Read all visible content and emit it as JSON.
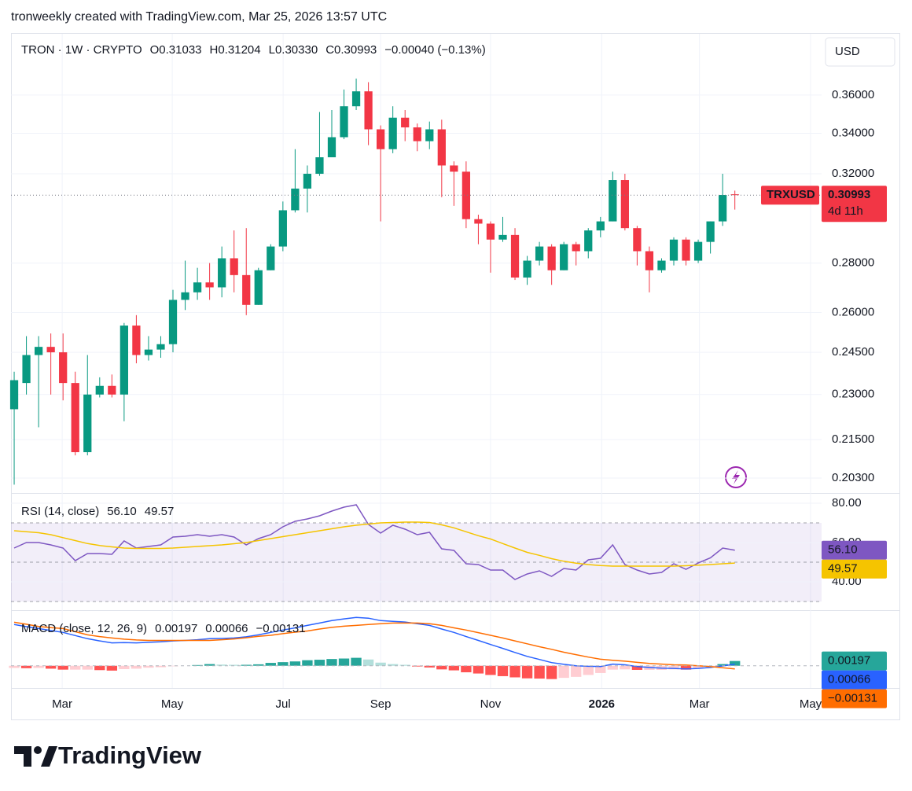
{
  "header": "tronweekly created with TradingView.com, Mar 25, 2026 13:57 UTC",
  "brand": "TradingView",
  "chart_data": [
    {
      "type": "candlestick",
      "title": "TRON · 1W · CRYPTO",
      "legend": [
        {
          "label": "O",
          "value": "0.31033"
        },
        {
          "label": "H",
          "value": "0.31204"
        },
        {
          "label": "L",
          "value": "0.30330"
        },
        {
          "label": "C",
          "value": "0.30993"
        }
      ],
      "change": "−0.00040 (−0.13%)",
      "symbol": "TRXUSD",
      "last_price_label": "0.30993",
      "countdown": "4d 11h",
      "currency": "USD",
      "colors": {
        "up": "#089981",
        "down": "#f23645"
      },
      "log_scale": true,
      "grid": true,
      "xlim": [
        -0.26,
        66.1
      ],
      "xticks": [
        {
          "value": 3.93,
          "label": "Mar"
        },
        {
          "value": 12.94,
          "label": "May"
        },
        {
          "value": 22.02,
          "label": "Jul"
        },
        {
          "value": 30,
          "label": "Sep"
        },
        {
          "value": 39,
          "label": "Nov"
        },
        {
          "value": 48.1,
          "label": "2026",
          "bold": true
        },
        {
          "value": 56.1,
          "label": "Mar"
        },
        {
          "value": 65.2,
          "label": "May"
        }
      ],
      "ylim": [
        0.1985,
        0.395
      ],
      "yticks": [
        {
          "value": 0.203,
          "label": "0.20300"
        },
        {
          "value": 0.215,
          "label": "0.21500"
        },
        {
          "value": 0.23,
          "label": "0.23000"
        },
        {
          "value": 0.245,
          "label": "0.24500"
        },
        {
          "value": 0.26,
          "label": "0.26000"
        },
        {
          "value": 0.28,
          "label": "0.28000"
        },
        {
          "value": 0.32,
          "label": "0.32000"
        },
        {
          "value": 0.34,
          "label": "0.34000"
        },
        {
          "value": 0.36,
          "label": "0.36000"
        }
      ],
      "open": [
        0.225,
        0.234,
        0.244,
        0.247,
        0.245,
        0.234,
        0.211,
        0.23,
        0.233,
        0.23,
        0.255,
        0.244,
        0.246,
        0.248,
        0.265,
        0.268,
        0.272,
        0.27,
        0.282,
        0.275,
        0.263,
        0.277,
        0.287,
        0.303,
        0.313,
        0.32,
        0.328,
        0.338,
        0.354,
        0.362,
        0.342,
        0.332,
        0.348,
        0.343,
        0.336,
        0.342,
        0.324,
        0.321,
        0.299,
        0.297,
        0.29,
        0.292,
        0.274,
        0.281,
        0.287,
        0.277,
        0.288,
        0.285,
        0.294,
        0.298,
        0.317,
        0.295,
        0.285,
        0.277,
        0.281,
        0.29,
        0.281,
        0.289,
        0.298,
        0.31033
      ],
      "high": [
        0.238,
        0.251,
        0.251,
        0.252,
        0.252,
        0.238,
        0.244,
        0.236,
        0.237,
        0.256,
        0.259,
        0.251,
        0.251,
        0.269,
        0.281,
        0.278,
        0.28,
        0.287,
        0.294,
        0.295,
        0.278,
        0.288,
        0.307,
        0.332,
        0.324,
        0.351,
        0.352,
        0.363,
        0.369,
        0.367,
        0.344,
        0.354,
        0.352,
        0.345,
        0.346,
        0.347,
        0.326,
        0.326,
        0.301,
        0.298,
        0.3,
        0.295,
        0.283,
        0.289,
        0.288,
        0.289,
        0.289,
        0.295,
        0.3,
        0.321,
        0.32,
        0.296,
        0.287,
        0.282,
        0.291,
        0.291,
        0.29,
        0.298,
        0.32,
        0.31204
      ],
      "low": [
        0.201,
        0.23,
        0.219,
        0.23,
        0.228,
        0.21,
        0.21,
        0.229,
        0.229,
        0.221,
        0.241,
        0.242,
        0.243,
        0.245,
        0.261,
        0.265,
        0.265,
        0.266,
        0.268,
        0.259,
        0.263,
        0.277,
        0.285,
        0.302,
        0.302,
        0.319,
        0.328,
        0.337,
        0.352,
        0.334,
        0.298,
        0.33,
        0.336,
        0.331,
        0.332,
        0.309,
        0.305,
        0.295,
        0.288,
        0.276,
        0.289,
        0.273,
        0.271,
        0.279,
        0.271,
        0.277,
        0.279,
        0.282,
        0.291,
        0.298,
        0.294,
        0.279,
        0.268,
        0.276,
        0.279,
        0.279,
        0.28,
        0.284,
        0.296,
        0.3033
      ],
      "close": [
        0.235,
        0.244,
        0.247,
        0.245,
        0.234,
        0.211,
        0.23,
        0.233,
        0.23,
        0.255,
        0.244,
        0.246,
        0.248,
        0.265,
        0.268,
        0.272,
        0.27,
        0.282,
        0.275,
        0.263,
        0.277,
        0.287,
        0.303,
        0.313,
        0.32,
        0.328,
        0.338,
        0.354,
        0.362,
        0.342,
        0.332,
        0.348,
        0.343,
        0.336,
        0.342,
        0.324,
        0.321,
        0.299,
        0.297,
        0.29,
        0.292,
        0.274,
        0.281,
        0.287,
        0.277,
        0.288,
        0.285,
        0.294,
        0.298,
        0.317,
        0.295,
        0.285,
        0.277,
        0.281,
        0.29,
        0.281,
        0.289,
        0.298,
        0.31,
        0.30993
      ]
    },
    {
      "type": "line",
      "title": "RSI (14, close)",
      "legend_values": [
        "56.10",
        "49.57"
      ],
      "ylim": [
        26,
        84.8
      ],
      "yticks": [
        {
          "value": 80,
          "label": "80.00"
        },
        {
          "value": 60,
          "label": "60.00"
        },
        {
          "value": 40,
          "label": "40.00"
        }
      ],
      "band": [
        30,
        70
      ],
      "band_color": "rgba(126,87,194,0.1)",
      "levels": [
        70,
        50,
        30
      ],
      "series": [
        {
          "color": "#7e57c2",
          "values": [
            57.2,
            60,
            60,
            58.8,
            57.2,
            50.8,
            54.4,
            54.4,
            54,
            60.8,
            57.2,
            58,
            58.8,
            62.8,
            63.2,
            64,
            63.2,
            64,
            62.8,
            58.8,
            62,
            64,
            68,
            70.8,
            72,
            73.6,
            76,
            78,
            79.2,
            69.2,
            64.8,
            68.8,
            66.8,
            64,
            65.2,
            56.8,
            56,
            49.2,
            48.8,
            46,
            46,
            41.2,
            44,
            45.6,
            42.8,
            46.8,
            46,
            51.2,
            52,
            58.8,
            48.8,
            46,
            44,
            44.8,
            49.2,
            46.4,
            49.6,
            52.2,
            57.2,
            56.1
          ]
        },
        {
          "color": "#f5c400",
          "values": [
            66,
            65.5,
            65,
            64,
            62.5,
            61,
            59.5,
            58.5,
            57.8,
            57.2,
            57,
            57,
            57,
            57.2,
            57.6,
            58,
            58.4,
            58.8,
            59.4,
            60,
            61,
            62,
            63,
            64,
            65,
            66,
            67,
            68,
            68.8,
            69.4,
            70,
            70.2,
            70.4,
            70.4,
            70.2,
            69,
            67.5,
            65.5,
            63.5,
            61.8,
            59.5,
            57.2,
            55,
            53.5,
            51.8,
            50.5,
            49.5,
            48.8,
            48.3,
            48,
            48,
            48,
            48,
            48,
            48,
            48.2,
            48.5,
            48.8,
            49.2,
            49.57
          ]
        }
      ]
    },
    {
      "type": "line",
      "title": "MACD (close, 12, 26, 9)",
      "legend_values": [
        "0.00197",
        "0.00066",
        "−0.00131"
      ],
      "ylim": [
        -0.0092,
        0.0227
      ],
      "series": [
        {
          "style": "histogram",
          "colors": {
            "rise_up": "#26a69a",
            "fall_up": "#b2dfdb",
            "fall_down": "#ff5252",
            "rise_down": "#ffcdd2"
          },
          "values": [
            -0.0009,
            -0.001,
            -0.0009,
            -0.0012,
            -0.0016,
            -0.0016,
            -0.0016,
            -0.0018,
            -0.002,
            -0.0014,
            -0.0012,
            -0.0008,
            -0.0006,
            -0.0002,
            0,
            0.0003,
            0.0007,
            0.0005,
            0.0004,
            0.0004,
            0.0006,
            0.0012,
            0.0015,
            0.0018,
            0.0023,
            0.0025,
            0.0028,
            0.003,
            0.0033,
            0.0026,
            0.0013,
            0.0007,
            0.0004,
            -0.0003,
            -0.0007,
            -0.0015,
            -0.0019,
            -0.0027,
            -0.0032,
            -0.0038,
            -0.0043,
            -0.0048,
            -0.0052,
            -0.0053,
            -0.0055,
            -0.005,
            -0.0046,
            -0.0038,
            -0.003,
            -0.0016,
            -0.0015,
            -0.0017,
            -0.0017,
            -0.0017,
            -0.0015,
            -0.0016,
            -0.0011,
            -0.0004,
            0.0007,
            0.00197
          ]
        },
        {
          "color": "#2962ff",
          "values": [
            0.0171,
            0.0162,
            0.0154,
            0.0146,
            0.0138,
            0.0125,
            0.0112,
            0.0103,
            0.0095,
            0.0096,
            0.0095,
            0.0097,
            0.0099,
            0.0103,
            0.0105,
            0.0108,
            0.0112,
            0.0113,
            0.0115,
            0.012,
            0.0128,
            0.0138,
            0.0148,
            0.0157,
            0.0167,
            0.0177,
            0.0187,
            0.0194,
            0.02,
            0.0197,
            0.0187,
            0.0184,
            0.0181,
            0.0174,
            0.0167,
            0.0152,
            0.0138,
            0.0121,
            0.0105,
            0.0088,
            0.0072,
            0.0055,
            0.0039,
            0.0026,
            0.0013,
            0.0006,
            0,
            -0.0002,
            -0.0003,
            0.0007,
            0.0004,
            -0.0003,
            -0.0007,
            -0.001,
            -0.0011,
            -0.0013,
            -0.0011,
            -0.0007,
            -0.0001,
            0.00066
          ]
        },
        {
          "color": "#ff6d00",
          "values": [
            0.018,
            0.0172,
            0.0163,
            0.0158,
            0.0154,
            0.0141,
            0.0128,
            0.0121,
            0.0115,
            0.011,
            0.0107,
            0.0105,
            0.0105,
            0.0105,
            0.0105,
            0.0105,
            0.0105,
            0.0108,
            0.0111,
            0.0116,
            0.0122,
            0.0126,
            0.0133,
            0.0139,
            0.0144,
            0.0152,
            0.0159,
            0.0164,
            0.0167,
            0.0171,
            0.0174,
            0.0177,
            0.0177,
            0.0177,
            0.0174,
            0.0167,
            0.0157,
            0.0148,
            0.0137,
            0.0126,
            0.0115,
            0.0103,
            0.0091,
            0.0079,
            0.0068,
            0.0056,
            0.0046,
            0.0036,
            0.0027,
            0.0023,
            0.0019,
            0.0014,
            0.001,
            0.0007,
            0.0004,
            0.0003,
            0,
            -0.0003,
            -0.0008,
            -0.00131
          ]
        }
      ]
    }
  ]
}
